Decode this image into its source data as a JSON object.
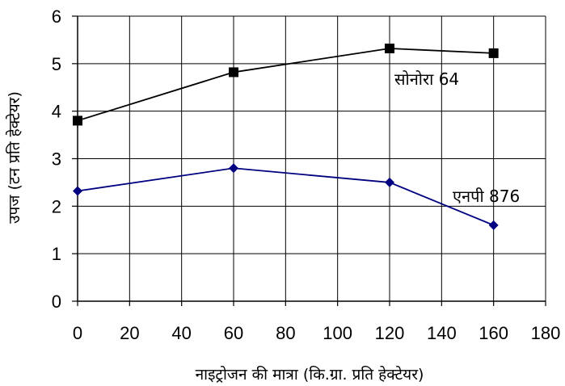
{
  "chart_data": {
    "type": "line",
    "xlabel": "नाइट्रोजन की मात्रा (कि.ग्रा. प्रति हेक्टेयर)",
    "ylabel": "उपज (टन प्रति हेक्टेयर)",
    "xlim": [
      0,
      180
    ],
    "ylim": [
      0,
      6
    ],
    "x_ticks": [
      "0",
      "20",
      "40",
      "60",
      "80",
      "100",
      "120",
      "140",
      "160",
      "180"
    ],
    "y_ticks": [
      "0",
      "1",
      "2",
      "3",
      "4",
      "5",
      "6"
    ],
    "grid": true,
    "series": [
      {
        "name": "सोनोरा 64",
        "marker": "square",
        "color": "#000000",
        "x": [
          0,
          60,
          120,
          160
        ],
        "y": [
          3.8,
          4.82,
          5.32,
          5.22
        ]
      },
      {
        "name": "एनपी 876",
        "marker": "diamond",
        "color": "#000080",
        "x": [
          0,
          60,
          120,
          160
        ],
        "y": [
          2.32,
          2.8,
          2.5,
          1.6
        ]
      }
    ]
  }
}
